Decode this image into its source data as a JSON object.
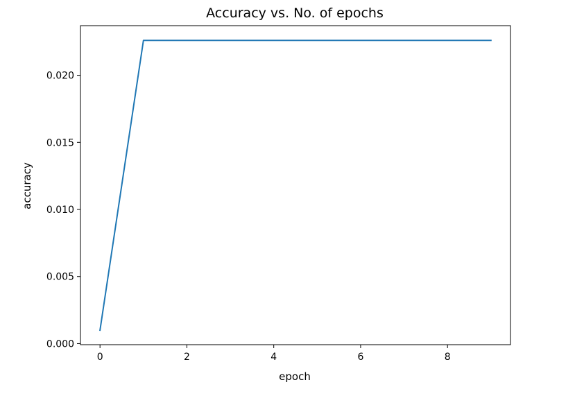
{
  "chart_data": {
    "type": "line",
    "title": "Accuracy vs. No. of epochs",
    "xlabel": "epoch",
    "ylabel": "accuracy",
    "xlim": [
      -0.45,
      9.45
    ],
    "ylim": [
      -8e-05,
      0.0237
    ],
    "xticks": [
      0,
      2,
      4,
      6,
      8
    ],
    "xtick_labels": [
      "0",
      "2",
      "4",
      "6",
      "8"
    ],
    "yticks": [
      0.0,
      0.005,
      0.01,
      0.015,
      0.02
    ],
    "ytick_labels": [
      "0.000",
      "0.005",
      "0.010",
      "0.015",
      "0.020"
    ],
    "grid": false,
    "series": [
      {
        "color": "#1f77b4",
        "x": [
          0,
          1,
          2,
          3,
          4,
          5,
          6,
          7,
          8,
          9
        ],
        "y": [
          0.001,
          0.0226,
          0.0226,
          0.0226,
          0.0226,
          0.0226,
          0.0226,
          0.0226,
          0.0226,
          0.0226
        ]
      }
    ]
  }
}
